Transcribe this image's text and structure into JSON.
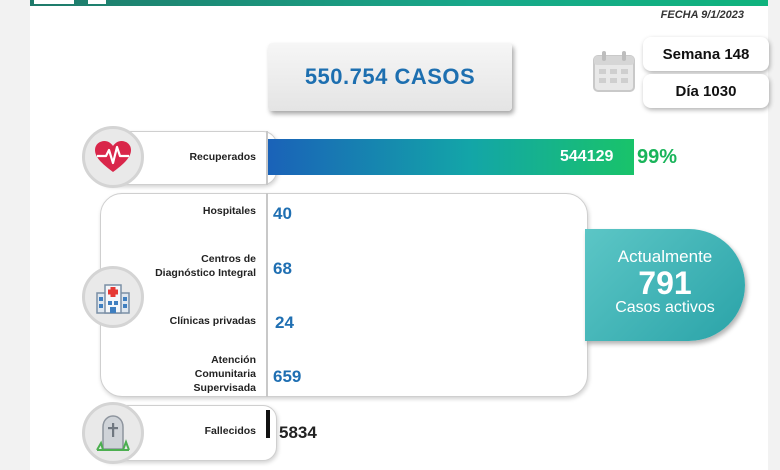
{
  "header": {
    "fecha": "FECHA 9/1/2023",
    "total_cases": "550.754 CASOS",
    "week": "Semana 148",
    "day": "Día 1030"
  },
  "recovered": {
    "label": "Recuperados",
    "value": "544129",
    "percent": "99%",
    "percent_number": 99
  },
  "hospitalized": [
    {
      "label": "Hospitales",
      "value": "40"
    },
    {
      "label": "Centros de\nDiagnóstico Integral",
      "value": "68"
    },
    {
      "label": "Clínicas privadas",
      "value": "24"
    },
    {
      "label": "Atención\nComunitaria\nSupervisada",
      "value": "659"
    }
  ],
  "active": {
    "line1": "Actualmente",
    "number": "791",
    "line2": "Casos activos"
  },
  "deceased": {
    "label": "Fallecidos",
    "value": "5834"
  },
  "colors": {
    "blue_text": "#1f6fb2",
    "green_pct": "#19b45a",
    "teal": "#2aa3a8"
  },
  "icons": {
    "recovered": "heart-pulse-icon",
    "facilities": "hospital-icon",
    "deceased": "tombstone-icon",
    "date": "calendar-icon"
  }
}
